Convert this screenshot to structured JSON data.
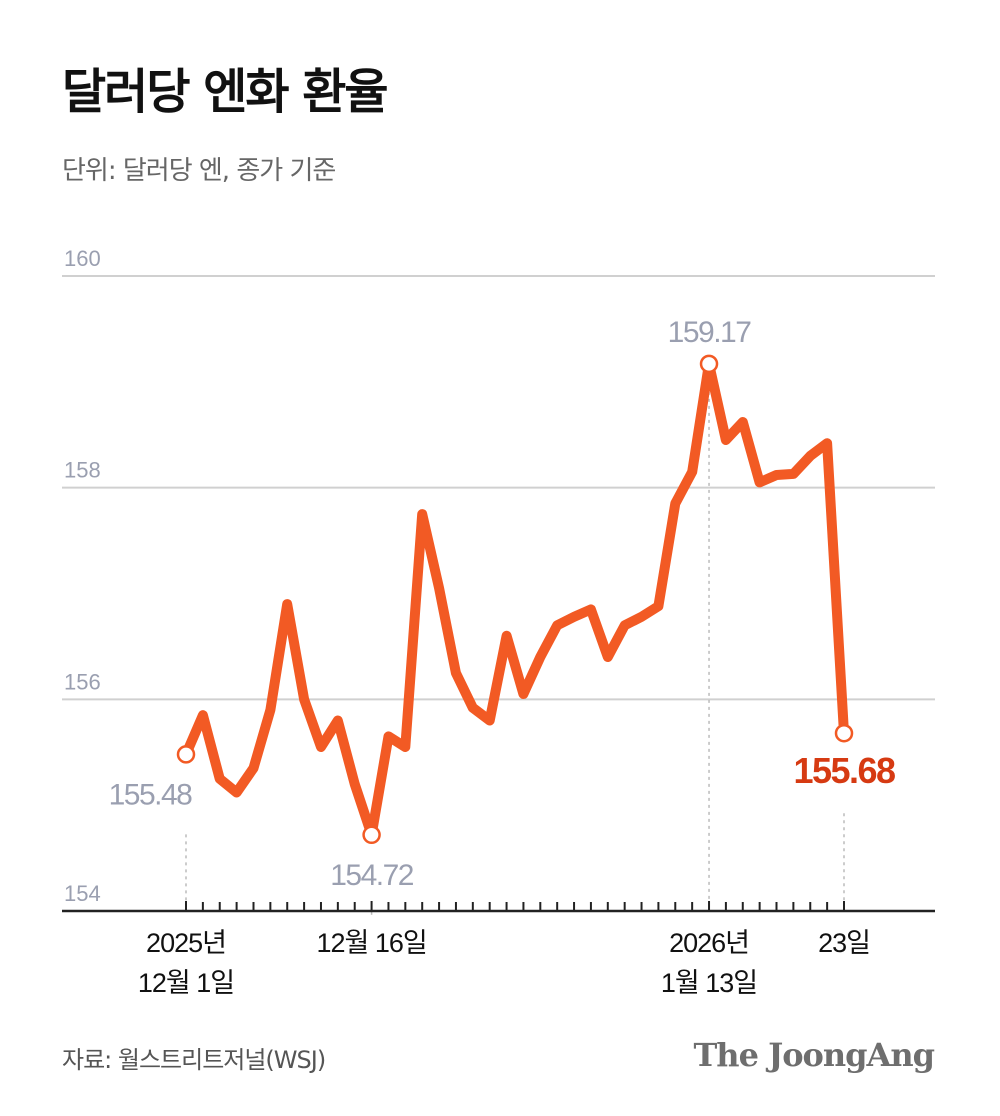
{
  "header": {
    "title": "달러당 엔화 환율",
    "subtitle": "단위: 달러당 엔, 종가 기준"
  },
  "footer": {
    "source": "자료: 월스트리트저널(WSJ)",
    "brand": "The JoongAng"
  },
  "colors": {
    "line": "#f25a24",
    "highlight_label": "#d63a12",
    "grid": "#d0d0d0",
    "axis_label": "#9a9fb0",
    "axis": "#222222"
  },
  "chart_data": {
    "type": "line",
    "ylim": [
      154,
      160
    ],
    "yticks": [
      154,
      156,
      158,
      160
    ],
    "grid": true,
    "series": [
      {
        "values": [
          155.48,
          155.85,
          155.25,
          155.12,
          155.35,
          155.9,
          156.9,
          156.0,
          155.55,
          155.8,
          155.2,
          154.72,
          155.65,
          155.55,
          157.75,
          157.05,
          156.25,
          155.92,
          155.8,
          156.6,
          156.05,
          156.4,
          156.7,
          156.78,
          156.85,
          156.4,
          156.7,
          156.78,
          156.88,
          157.85,
          158.15,
          159.17,
          158.45,
          158.62,
          158.05,
          158.12,
          158.13,
          158.3,
          158.42,
          155.68
        ]
      }
    ],
    "x_labels": [
      {
        "index": 0,
        "lines": [
          "2025년",
          "12월 1일"
        ]
      },
      {
        "index": 11,
        "lines": [
          "12월 16일"
        ]
      },
      {
        "index": 31,
        "lines": [
          "2026년",
          "1월 13일"
        ]
      },
      {
        "index": 39,
        "lines": [
          "23일"
        ]
      }
    ],
    "annotations": [
      {
        "index": 0,
        "text": "155.48",
        "position": "below",
        "highlight": false
      },
      {
        "index": 11,
        "text": "154.72",
        "position": "below",
        "highlight": false
      },
      {
        "index": 31,
        "text": "159.17",
        "position": "above",
        "highlight": false
      },
      {
        "index": 39,
        "text": "155.68",
        "position": "below",
        "highlight": true
      }
    ]
  }
}
